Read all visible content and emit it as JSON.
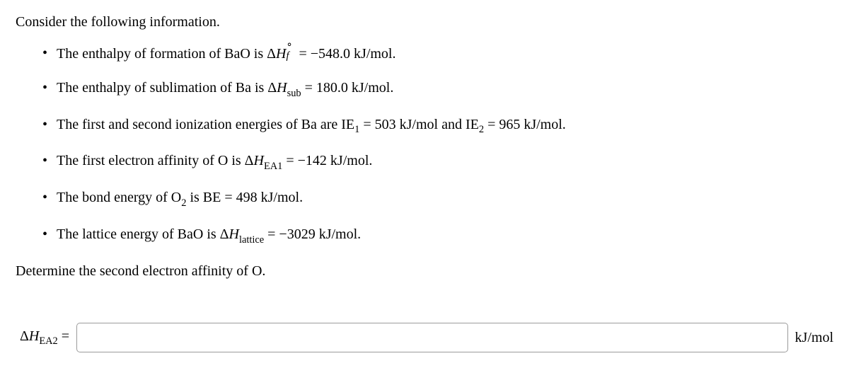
{
  "intro": "Consider the following information.",
  "bullets": {
    "b0": {
      "pre": "The enthalpy of formation of BaO is Δ",
      "sym": "H",
      "sup": "∘",
      "sub": "f",
      "eq": " = ",
      "val": "−548.0 kJ/mol."
    },
    "b1": {
      "pre": "The enthalpy of sublimation of Ba is Δ",
      "sym": "H",
      "sub": "sub",
      "eq": " = ",
      "val": "180.0 kJ/mol."
    },
    "b2": {
      "pre": "The first and second ionization energies of Ba are IE",
      "sub1": "1",
      "mid": " = 503 kJ/mol and IE",
      "sub2": "2",
      "post": " = 965 kJ/mol."
    },
    "b3": {
      "pre": "The first electron affinity of O is Δ",
      "sym": "H",
      "sub": "EA1",
      "eq": " = ",
      "val": "−142 kJ/mol."
    },
    "b4": {
      "pre": "The bond energy of O",
      "sub": "2",
      "mid": " is BE = ",
      "val": "498 kJ/mol."
    },
    "b5": {
      "pre": "The lattice energy of BaO is Δ",
      "sym": "H",
      "sub": "lattice",
      "eq": " = ",
      "val": "−3029 kJ/mol."
    }
  },
  "conclusion": "Determine the second electron affinity of O.",
  "answer": {
    "label_pre": "Δ",
    "label_sym": "H",
    "label_sub": "EA2",
    "label_eq": " = ",
    "unit": "kJ/mol",
    "value": ""
  }
}
